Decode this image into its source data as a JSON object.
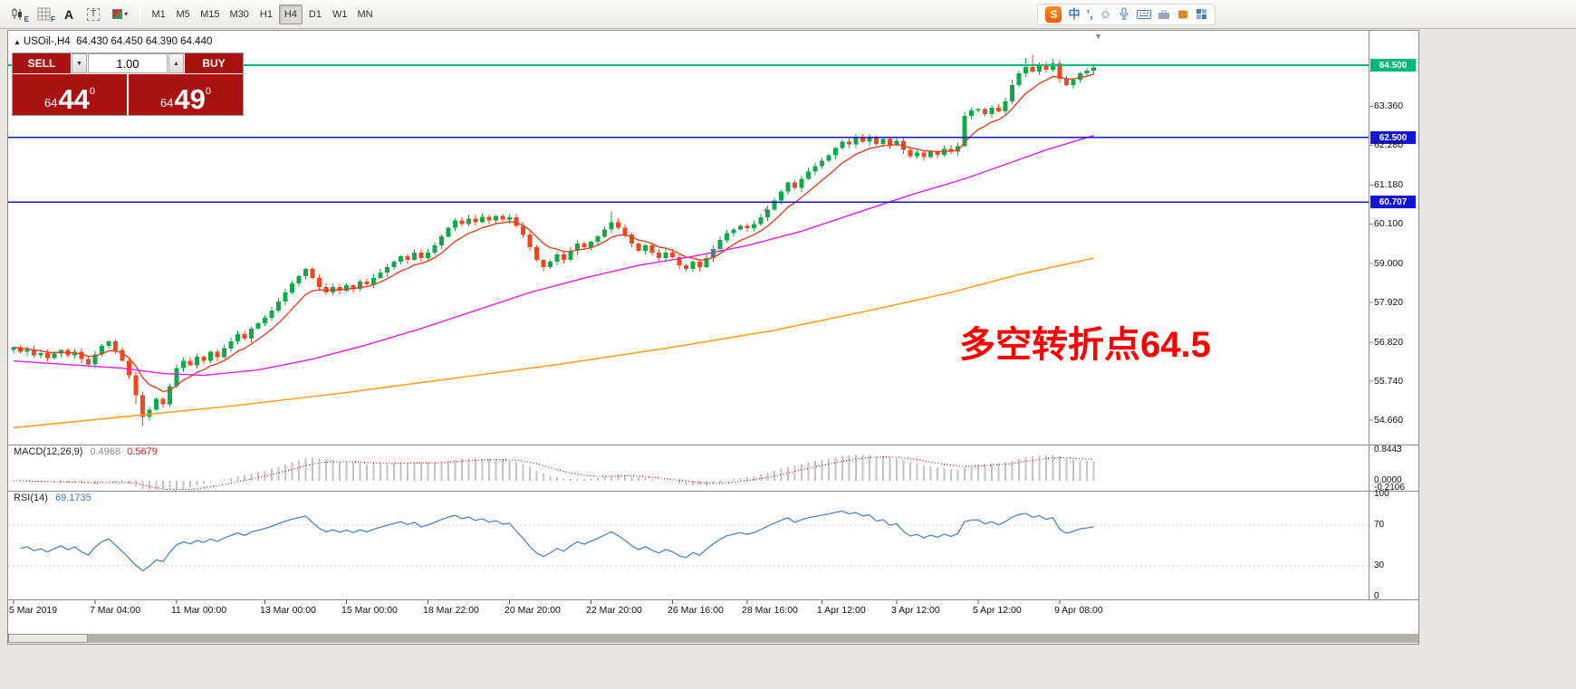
{
  "colors": {
    "trade_red": "#aa1111",
    "annotation_red": "#ff0000",
    "level_green": "#00b87c",
    "level_blue": "#1414d8"
  },
  "icons": {
    "menu_triangle": "▲",
    "caret_down": "▼",
    "caret_down_small": "▾",
    "spin_up": "▲",
    "shift_marker": "▼",
    "plus_marker": "+",
    "smiley": "☺"
  },
  "toolbar": {
    "timeframes": [
      "M1",
      "M5",
      "M15",
      "M30",
      "H1",
      "H4",
      "D1",
      "W1",
      "MN"
    ],
    "active_timeframe": "H4",
    "tools": {
      "candle_badge": "E",
      "grid_badge": "F",
      "text_tool": "A",
      "label_tool": "T"
    },
    "ime": {
      "logo": "S",
      "mode": "中",
      "punct": "’,"
    }
  },
  "chart": {
    "title_symbol": "USOil-,H4",
    "title_quotes": "64.430 64.450 64.390 64.440",
    "annotation": "多空转折点64.5"
  },
  "trade_panel": {
    "sell_label": "SELL",
    "buy_label": "BUY",
    "volume": "1.00",
    "sell_small": "64",
    "sell_big": "44",
    "sell_sup": "0",
    "buy_small": "64",
    "buy_big": "49",
    "buy_sup": "0"
  },
  "indicator_labels": {
    "macd_name": "MACD(12,26,9)",
    "macd_value": "0.4968",
    "macd_signal": "0.5679",
    "macd_scale": [
      {
        "v": 0.8443,
        "label": "0.8443"
      },
      {
        "v": 0,
        "label": "0.0000"
      },
      {
        "v": -0.2106,
        "label": "-0.2106"
      }
    ],
    "rsi_name": "RSI(14)",
    "rsi_value": "69.1735",
    "rsi_scale": [
      {
        "v": 100,
        "label": "100"
      },
      {
        "v": 70,
        "label": "70"
      },
      {
        "v": 30,
        "label": "30"
      },
      {
        "v": 0,
        "label": "0"
      }
    ]
  },
  "chart_data": {
    "type": "candlestick",
    "symbol": "USOil-",
    "timeframe": "H4",
    "up_color": "#0fa94c",
    "down_color": "#f2461c",
    "first_open": 56.6,
    "closes": [
      56.68,
      56.55,
      56.62,
      56.45,
      56.52,
      56.38,
      56.5,
      56.6,
      56.45,
      56.55,
      56.35,
      56.2,
      56.48,
      56.72,
      56.85,
      56.6,
      56.3,
      55.9,
      55.35,
      54.75,
      54.95,
      55.25,
      55.1,
      55.6,
      56.1,
      56.3,
      56.18,
      56.42,
      56.3,
      56.55,
      56.4,
      56.65,
      56.85,
      57.05,
      56.92,
      57.2,
      57.35,
      57.5,
      57.7,
      57.95,
      58.2,
      58.45,
      58.65,
      58.85,
      58.6,
      58.35,
      58.2,
      58.35,
      58.25,
      58.4,
      58.3,
      58.5,
      58.42,
      58.6,
      58.75,
      58.9,
      59.05,
      59.2,
      59.1,
      59.3,
      59.15,
      59.3,
      59.5,
      59.75,
      60.0,
      60.2,
      60.1,
      60.25,
      60.15,
      60.3,
      60.2,
      60.32,
      60.22,
      60.28,
      60.05,
      59.8,
      59.45,
      59.1,
      58.9,
      59.05,
      59.25,
      59.1,
      59.35,
      59.55,
      59.45,
      59.6,
      59.75,
      59.95,
      60.15,
      60.0,
      59.8,
      59.55,
      59.35,
      59.5,
      59.3,
      59.15,
      59.3,
      59.18,
      58.95,
      58.85,
      59.05,
      58.9,
      59.15,
      59.4,
      59.65,
      59.85,
      59.95,
      60.05,
      59.98,
      60.1,
      60.28,
      60.5,
      60.75,
      61.0,
      61.25,
      61.1,
      61.35,
      61.55,
      61.7,
      61.85,
      62.0,
      62.2,
      62.38,
      62.3,
      62.48,
      62.38,
      62.5,
      62.32,
      62.45,
      62.28,
      62.4,
      62.15,
      61.98,
      62.08,
      61.95,
      62.1,
      62.02,
      62.18,
      62.1,
      62.25,
      63.1,
      63.25,
      63.28,
      63.15,
      63.32,
      63.22,
      63.5,
      63.95,
      64.28,
      64.45,
      64.32,
      64.5,
      64.38,
      64.55,
      64.12,
      63.95,
      64.1,
      64.28,
      64.35,
      64.44
    ],
    "wick_overrides": {
      "18": {
        "low": 55.1
      },
      "19": {
        "low": 54.5
      },
      "88": {
        "high": 60.45
      },
      "147": {
        "high": 64.1
      },
      "149": {
        "high": 64.7
      },
      "150": {
        "high": 64.79
      },
      "153": {
        "high": 64.68
      }
    },
    "hlines": [
      {
        "price": 64.5,
        "label": "64.500",
        "color": "#00b87c"
      },
      {
        "price": 62.5,
        "label": "62.500",
        "color": "#1414d8"
      },
      {
        "price": 60.707,
        "label": "60.707",
        "color": "#1414d8"
      }
    ],
    "ma_fast": {
      "period": 8,
      "color": "#e8421e"
    },
    "ma_mid": {
      "color": "#e51ce5",
      "anchors": [
        [
          0,
          56.3
        ],
        [
          8,
          56.2
        ],
        [
          16,
          56.1
        ],
        [
          22,
          55.95
        ],
        [
          28,
          55.9
        ],
        [
          36,
          56.05
        ],
        [
          44,
          56.35
        ],
        [
          52,
          56.75
        ],
        [
          60,
          57.2
        ],
        [
          68,
          57.7
        ],
        [
          76,
          58.2
        ],
        [
          84,
          58.6
        ],
        [
          92,
          58.95
        ],
        [
          100,
          59.2
        ],
        [
          108,
          59.5
        ],
        [
          116,
          59.9
        ],
        [
          124,
          60.4
        ],
        [
          132,
          60.9
        ],
        [
          140,
          61.35
        ],
        [
          146,
          61.75
        ],
        [
          152,
          62.15
        ],
        [
          159,
          62.55
        ]
      ]
    },
    "ma_slow": {
      "color": "#ffa11e",
      "anchors": [
        [
          0,
          54.45
        ],
        [
          16,
          54.75
        ],
        [
          32,
          55.05
        ],
        [
          48,
          55.4
        ],
        [
          64,
          55.8
        ],
        [
          80,
          56.2
        ],
        [
          96,
          56.65
        ],
        [
          112,
          57.15
        ],
        [
          126,
          57.7
        ],
        [
          138,
          58.2
        ],
        [
          148,
          58.7
        ],
        [
          159,
          59.15
        ]
      ]
    },
    "y_axis_ticks": [
      63.36,
      62.28,
      61.18,
      60.1,
      59.0,
      57.92,
      56.82,
      55.74,
      54.66
    ],
    "time_ticks": [
      {
        "i": 0,
        "label": "5 Mar 2019"
      },
      {
        "i": 12,
        "label": "7 Mar 04:00"
      },
      {
        "i": 24,
        "label": "11 Mar 00:00"
      },
      {
        "i": 37,
        "label": "13 Mar 00:00"
      },
      {
        "i": 49,
        "label": "15 Mar 00:00"
      },
      {
        "i": 61,
        "label": "18 Mar 22:00"
      },
      {
        "i": 73,
        "label": "20 Mar 20:00"
      },
      {
        "i": 85,
        "label": "22 Mar 20:00"
      },
      {
        "i": 97,
        "label": "26 Mar 16:00"
      },
      {
        "i": 108,
        "label": "28 Mar 16:00"
      },
      {
        "i": 119,
        "label": "1 Apr 12:00"
      },
      {
        "i": 130,
        "label": "3 Apr 12:00"
      },
      {
        "i": 142,
        "label": "5 Apr 12:00"
      },
      {
        "i": 154,
        "label": "9 Apr 08:00"
      }
    ],
    "indicators": {
      "macd": {
        "params": [
          12,
          26,
          9
        ],
        "value": 0.4968,
        "signal": 0.5679,
        "scale_max": 0.8443,
        "scale_min": -0.2106,
        "histogram_color": "#c4c4c4",
        "signal_color": "#d21414"
      },
      "rsi": {
        "period": 14,
        "value": 69.1735,
        "levels": [
          30,
          70
        ],
        "line_color": "#4a86c8"
      }
    }
  }
}
